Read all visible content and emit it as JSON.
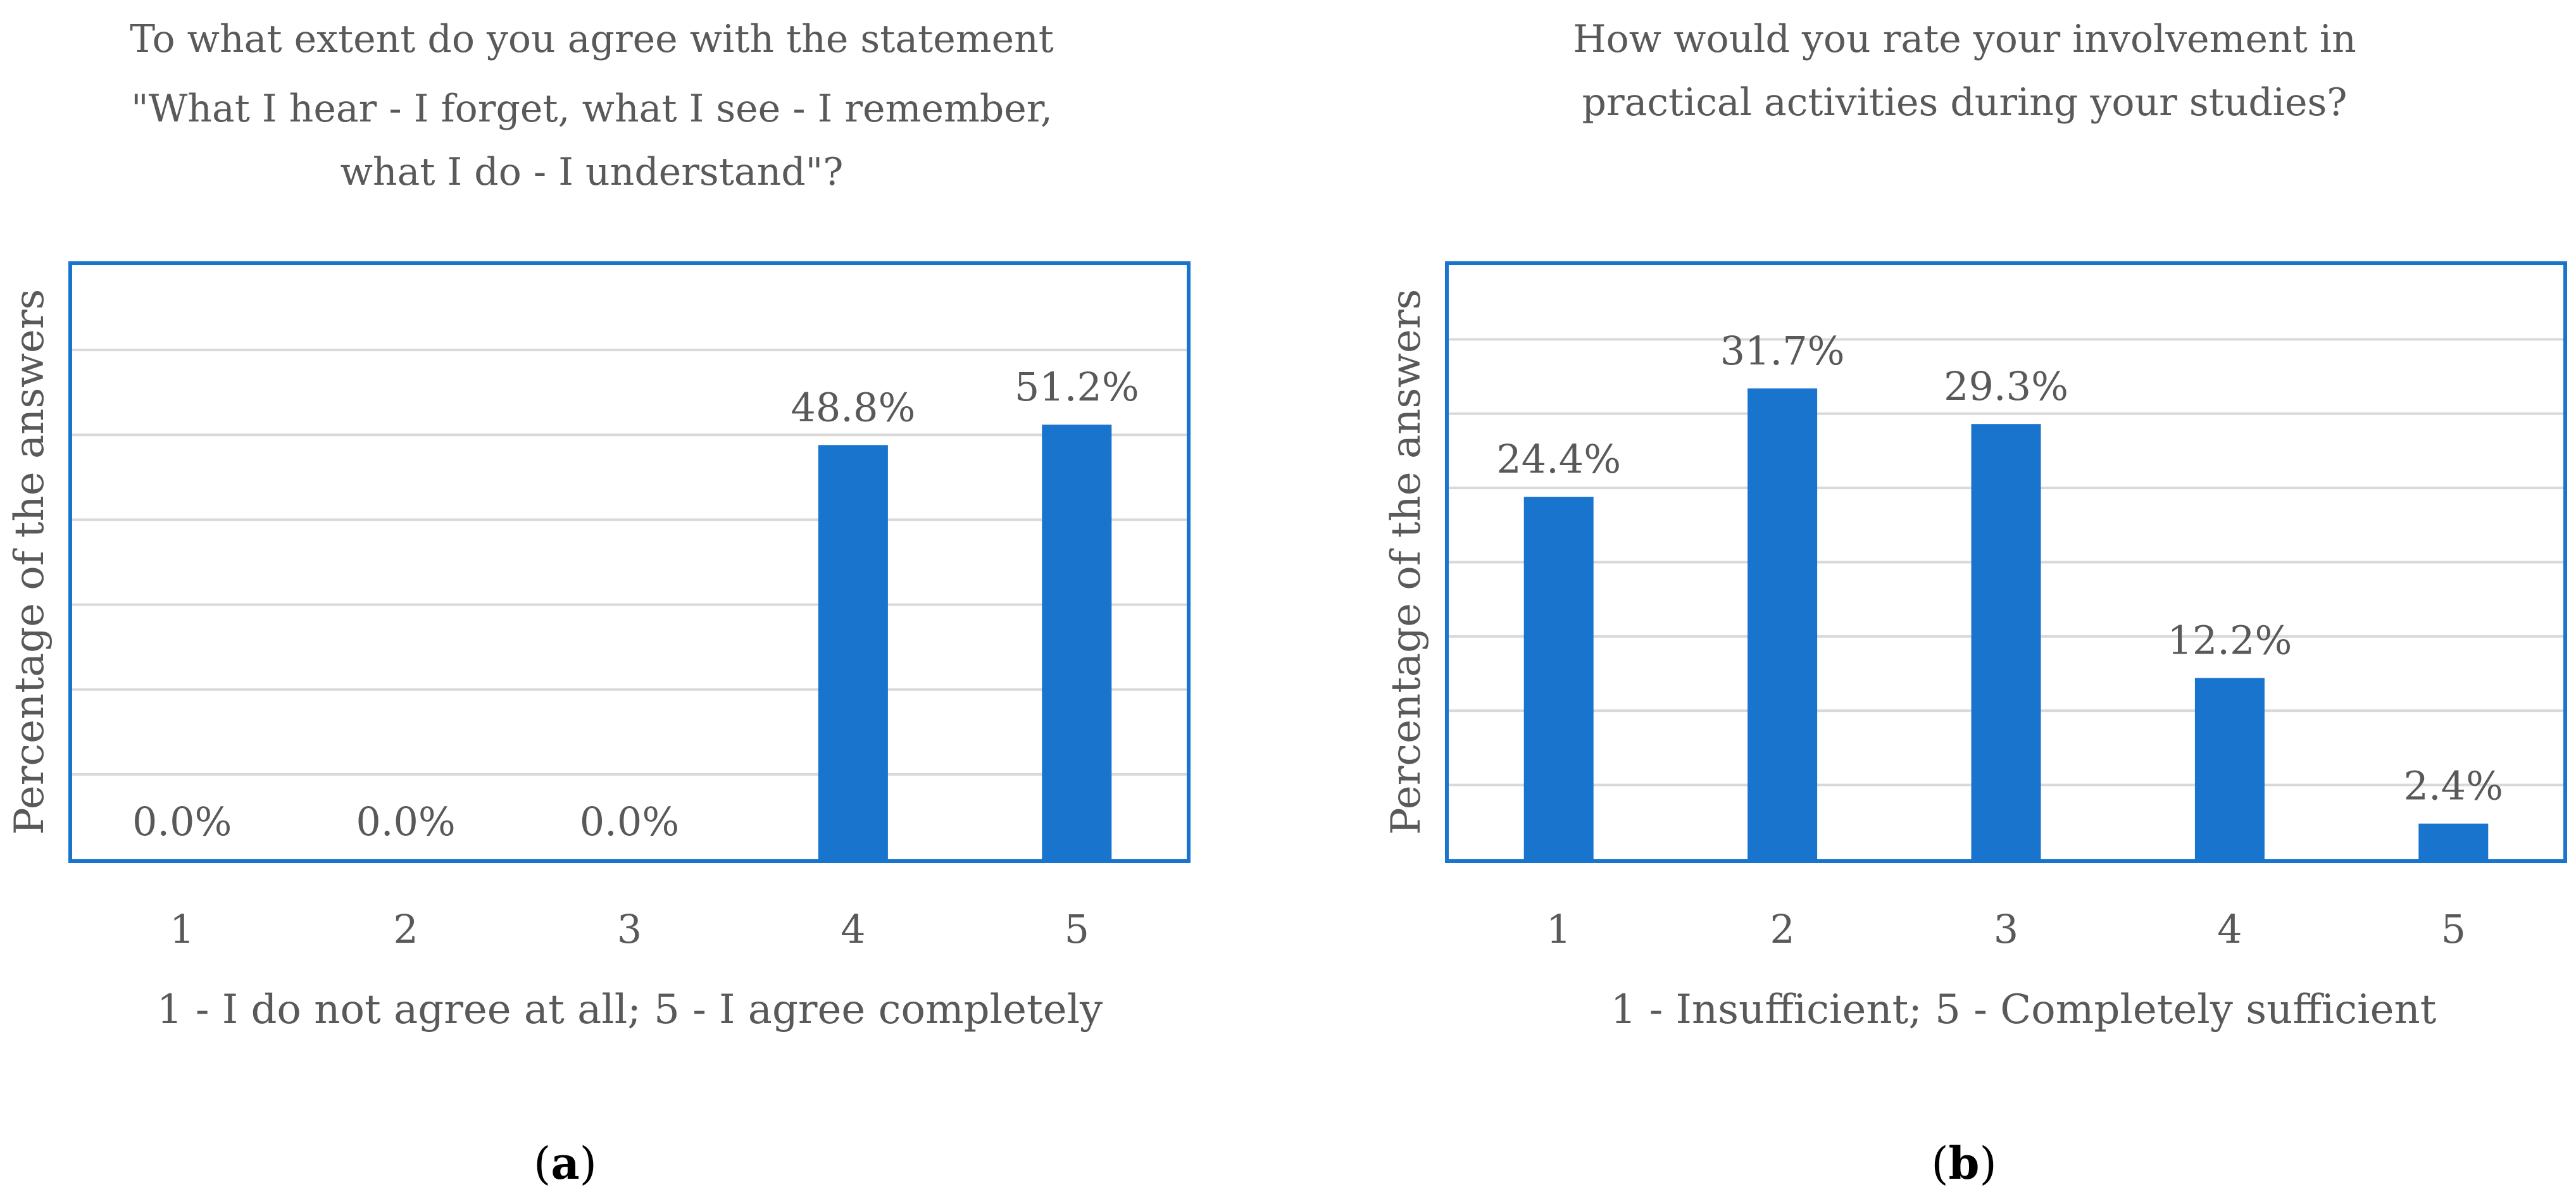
{
  "colors": {
    "bar": "#1874CD",
    "frame": "#1874CD",
    "grid": "#D9D9D9",
    "text": "#595959"
  },
  "chart_data": [
    {
      "type": "bar",
      "title_lines": [
        "To what extent do you agree with the  statement",
        "\"What I hear - I forget, what I see - I remember,",
        "what I do - I understand\"?"
      ],
      "xlabel": "1 - I do not agree at all; 5 - I agree completely",
      "ylabel": "Percentage of the answers",
      "categories": [
        "1",
        "2",
        "3",
        "4",
        "5"
      ],
      "values": [
        0.0,
        0.0,
        0.0,
        48.8,
        51.2
      ],
      "data_labels": [
        "0.0%",
        "0.0%",
        "0.0%",
        "48.8%",
        "51.2%"
      ],
      "ylim": [
        0,
        70
      ],
      "gridline_step": 10,
      "grid": true,
      "legend": "none",
      "panel": {
        "open": "(",
        "letter": "a",
        "close": ")"
      }
    },
    {
      "type": "bar",
      "title_lines": [
        "How would you rate your involvement in",
        "practical activities during your studies?"
      ],
      "xlabel": "1 - Insufficient; 5 - Completely sufficient",
      "ylabel": "Percentage of the answers",
      "categories": [
        "1",
        "2",
        "3",
        "4",
        "5"
      ],
      "values": [
        24.4,
        31.7,
        29.3,
        12.2,
        2.4
      ],
      "data_labels": [
        "24.4%",
        "31.7%",
        "29.3%",
        "12.2%",
        "2.4%"
      ],
      "ylim": [
        0,
        40
      ],
      "gridline_step": 5,
      "grid": true,
      "legend": "none",
      "panel": {
        "open": "(",
        "letter": "b",
        "close": ")"
      }
    }
  ]
}
